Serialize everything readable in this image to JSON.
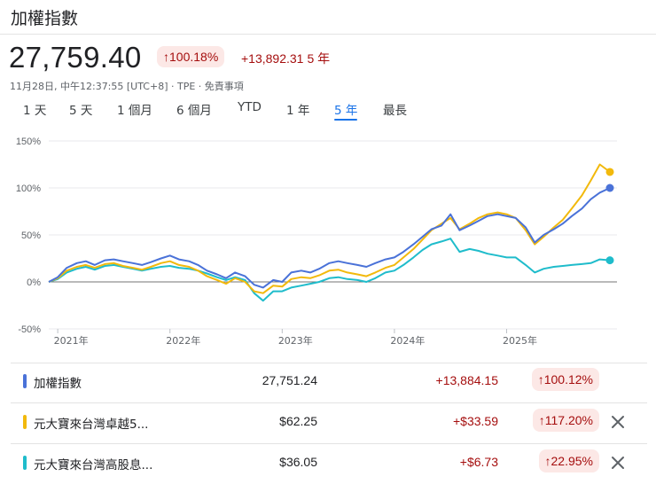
{
  "header": {
    "title": "加權指數"
  },
  "quote": {
    "price": "27,759.40",
    "change_percent": "↑100.18%",
    "change_points": "+13,892.31",
    "period": "5 年",
    "timestamp": "11月28日, 中午12:37:55 [UTC+8] · TPE · 免責事項"
  },
  "range_tabs": [
    {
      "label": "1 天"
    },
    {
      "label": "5 天"
    },
    {
      "label": "1 個月"
    },
    {
      "label": "6 個月"
    },
    {
      "label": "YTD"
    },
    {
      "label": "1 年"
    },
    {
      "label": "5 年",
      "active": true
    },
    {
      "label": "最長"
    }
  ],
  "colors": {
    "up": "#a50e0e",
    "up_bg": "#fce8e6",
    "accent": "#1a73e8",
    "series_1": "#4a72d8",
    "series_2": "#f2b90c",
    "series_3": "#1fbccb"
  },
  "chart_data": {
    "type": "line",
    "y_ticks": [
      "150%",
      "100%",
      "50%",
      "0%",
      "-50%"
    ],
    "x_ticks": [
      "2021年",
      "2022年",
      "2023年",
      "2024年",
      "2025年"
    ],
    "ylim": [
      -50,
      150
    ],
    "xlim": [
      2020.92,
      2025.92
    ],
    "grid": true,
    "series": [
      {
        "name": "加權指數",
        "color": "#4a72d8",
        "x": [
          2020.92,
          2021.0,
          2021.08,
          2021.17,
          2021.25,
          2021.33,
          2021.42,
          2021.5,
          2021.58,
          2021.67,
          2021.75,
          2021.83,
          2021.92,
          2022.0,
          2022.08,
          2022.17,
          2022.25,
          2022.33,
          2022.42,
          2022.5,
          2022.58,
          2022.67,
          2022.75,
          2022.83,
          2022.92,
          2023.0,
          2023.08,
          2023.17,
          2023.25,
          2023.33,
          2023.42,
          2023.5,
          2023.58,
          2023.67,
          2023.75,
          2023.83,
          2023.92,
          2024.0,
          2024.08,
          2024.17,
          2024.25,
          2024.33,
          2024.42,
          2024.5,
          2024.58,
          2024.67,
          2024.75,
          2024.83,
          2024.92,
          2025.0,
          2025.08,
          2025.17,
          2025.25,
          2025.33,
          2025.42,
          2025.5,
          2025.58,
          2025.67,
          2025.75,
          2025.83,
          2025.92
        ],
        "y": [
          0,
          5,
          15,
          20,
          22,
          18,
          23,
          24,
          22,
          20,
          18,
          21,
          25,
          28,
          24,
          22,
          18,
          12,
          8,
          4,
          10,
          6,
          -3,
          -6,
          2,
          0,
          10,
          12,
          10,
          14,
          20,
          22,
          20,
          18,
          16,
          20,
          24,
          26,
          32,
          40,
          48,
          56,
          60,
          72,
          55,
          60,
          65,
          70,
          72,
          70,
          68,
          58,
          42,
          50,
          56,
          62,
          70,
          78,
          88,
          95,
          100
        ]
      },
      {
        "name": "元大寶來台灣卓越5...",
        "color": "#f2b90c",
        "x": [
          2020.92,
          2021.0,
          2021.08,
          2021.17,
          2021.25,
          2021.33,
          2021.42,
          2021.5,
          2021.58,
          2021.67,
          2021.75,
          2021.83,
          2021.92,
          2022.0,
          2022.08,
          2022.17,
          2022.25,
          2022.33,
          2022.42,
          2022.5,
          2022.58,
          2022.67,
          2022.75,
          2022.83,
          2022.92,
          2023.0,
          2023.08,
          2023.17,
          2023.25,
          2023.33,
          2023.42,
          2023.5,
          2023.58,
          2023.67,
          2023.75,
          2023.83,
          2023.92,
          2024.0,
          2024.08,
          2024.17,
          2024.25,
          2024.33,
          2024.42,
          2024.5,
          2024.58,
          2024.67,
          2024.75,
          2024.83,
          2024.92,
          2025.0,
          2025.08,
          2025.17,
          2025.25,
          2025.33,
          2025.42,
          2025.5,
          2025.58,
          2025.67,
          2025.75,
          2025.83,
          2025.92
        ],
        "y": [
          0,
          4,
          12,
          16,
          18,
          15,
          19,
          20,
          17,
          15,
          13,
          16,
          20,
          22,
          18,
          16,
          12,
          6,
          2,
          -2,
          4,
          0,
          -10,
          -12,
          -4,
          -5,
          3,
          5,
          4,
          7,
          12,
          13,
          10,
          8,
          6,
          10,
          15,
          18,
          26,
          35,
          45,
          55,
          62,
          68,
          56,
          62,
          68,
          72,
          74,
          72,
          68,
          55,
          40,
          48,
          58,
          66,
          78,
          92,
          108,
          125,
          117
        ]
      },
      {
        "name": "元大寶來台灣高股息...",
        "color": "#1fbccb",
        "x": [
          2020.92,
          2021.0,
          2021.08,
          2021.17,
          2021.25,
          2021.33,
          2021.42,
          2021.5,
          2021.58,
          2021.67,
          2021.75,
          2021.83,
          2021.92,
          2022.0,
          2022.08,
          2022.17,
          2022.25,
          2022.33,
          2022.42,
          2022.5,
          2022.58,
          2022.67,
          2022.75,
          2022.83,
          2022.92,
          2023.0,
          2023.08,
          2023.17,
          2023.25,
          2023.33,
          2023.42,
          2023.5,
          2023.58,
          2023.67,
          2023.75,
          2023.83,
          2023.92,
          2024.0,
          2024.08,
          2024.17,
          2024.25,
          2024.33,
          2024.42,
          2024.5,
          2024.58,
          2024.67,
          2024.75,
          2024.83,
          2024.92,
          2025.0,
          2025.08,
          2025.17,
          2025.25,
          2025.33,
          2025.42,
          2025.5,
          2025.58,
          2025.67,
          2025.75,
          2025.83,
          2025.92
        ],
        "y": [
          0,
          3,
          10,
          14,
          16,
          13,
          17,
          18,
          16,
          14,
          12,
          14,
          16,
          17,
          15,
          14,
          12,
          9,
          5,
          2,
          5,
          2,
          -12,
          -20,
          -10,
          -10,
          -6,
          -4,
          -2,
          0,
          4,
          5,
          3,
          2,
          0,
          4,
          10,
          12,
          18,
          26,
          34,
          40,
          43,
          46,
          32,
          35,
          33,
          30,
          28,
          26,
          26,
          18,
          10,
          14,
          16,
          17,
          18,
          19,
          20,
          24,
          23
        ]
      }
    ]
  },
  "comparison": [
    {
      "name": "加權指數",
      "value": "27,751.24",
      "change": "+13,884.15",
      "percent": "↑100.12%",
      "color": "#4a72d8",
      "removable": false
    },
    {
      "name": "元大寶來台灣卓越5...",
      "value": "$62.25",
      "change": "+$33.59",
      "percent": "↑117.20%",
      "color": "#f2b90c",
      "removable": true
    },
    {
      "name": "元大寶來台灣高股息...",
      "value": "$36.05",
      "change": "+$6.73",
      "percent": "↑22.95%",
      "color": "#1fbccb",
      "removable": true
    }
  ]
}
